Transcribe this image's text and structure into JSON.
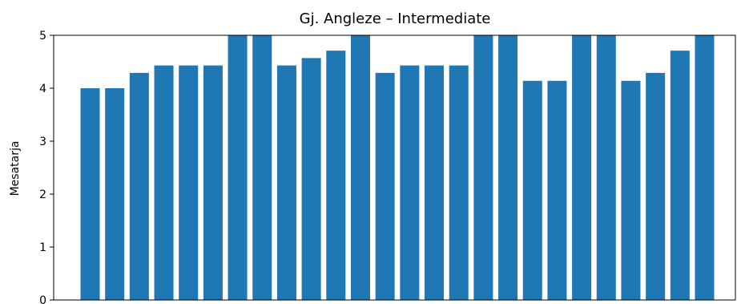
{
  "chart_data": {
    "type": "bar",
    "title": "Gj. Angleze – Intermediate",
    "xlabel": "",
    "ylabel": "Mesatarja",
    "ylim": [
      0,
      5
    ],
    "yticks": [
      0,
      1,
      2,
      3,
      4,
      5
    ],
    "grid": false,
    "color": "#1f77b4",
    "values": [
      4.0,
      4.0,
      4.29,
      4.43,
      4.43,
      4.43,
      5.0,
      5.0,
      4.43,
      4.57,
      4.71,
      5.0,
      4.29,
      4.43,
      4.43,
      4.43,
      5.0,
      5.0,
      4.14,
      4.14,
      5.0,
      5.0,
      4.14,
      4.29,
      4.71,
      5.0
    ]
  }
}
